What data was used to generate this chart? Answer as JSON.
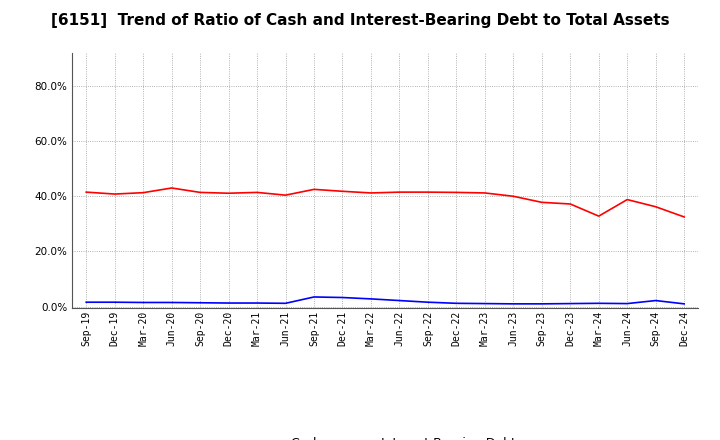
{
  "title": "[6151]  Trend of Ratio of Cash and Interest-Bearing Debt to Total Assets",
  "x_labels": [
    "Sep-19",
    "Dec-19",
    "Mar-20",
    "Jun-20",
    "Sep-20",
    "Dec-20",
    "Mar-21",
    "Jun-21",
    "Sep-21",
    "Dec-21",
    "Mar-22",
    "Jun-22",
    "Sep-22",
    "Dec-22",
    "Mar-23",
    "Jun-23",
    "Sep-23",
    "Dec-23",
    "Mar-24",
    "Jun-24",
    "Sep-24",
    "Dec-24"
  ],
  "cash": [
    0.415,
    0.408,
    0.413,
    0.43,
    0.414,
    0.411,
    0.414,
    0.404,
    0.425,
    0.418,
    0.412,
    0.415,
    0.415,
    0.414,
    0.412,
    0.4,
    0.378,
    0.372,
    0.328,
    0.388,
    0.362,
    0.325
  ],
  "debt": [
    0.016,
    0.016,
    0.015,
    0.015,
    0.014,
    0.013,
    0.013,
    0.012,
    0.035,
    0.033,
    0.028,
    0.022,
    0.016,
    0.012,
    0.011,
    0.01,
    0.01,
    0.011,
    0.012,
    0.011,
    0.022,
    0.01
  ],
  "cash_color": "#ff0000",
  "debt_color": "#0000ff",
  "background_color": "#ffffff",
  "grid_color": "#999999",
  "ylim_min": -0.005,
  "ylim_max": 0.92,
  "yticks": [
    0.0,
    0.2,
    0.4,
    0.6,
    0.8
  ],
  "title_fontsize": 11,
  "tick_fontsize": 7,
  "legend_labels": [
    "Cash",
    "Interest-Bearing Debt"
  ]
}
